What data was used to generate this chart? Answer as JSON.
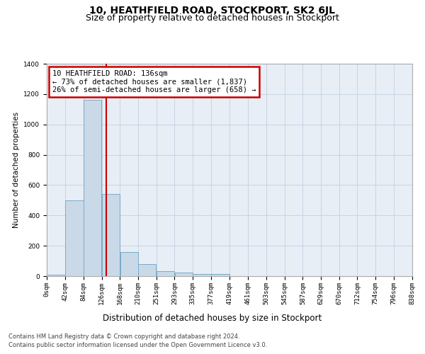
{
  "title": "10, HEATHFIELD ROAD, STOCKPORT, SK2 6JL",
  "subtitle": "Size of property relative to detached houses in Stockport",
  "xlabel": "Distribution of detached houses by size in Stockport",
  "ylabel": "Number of detached properties",
  "footnote1": "Contains HM Land Registry data © Crown copyright and database right 2024.",
  "footnote2": "Contains public sector information licensed under the Open Government Licence v3.0.",
  "annotation_line1": "10 HEATHFIELD ROAD: 136sqm",
  "annotation_line2": "← 73% of detached houses are smaller (1,837)",
  "annotation_line3": "26% of semi-detached houses are larger (658) →",
  "bin_edges": [
    0,
    42,
    84,
    126,
    168,
    210,
    251,
    293,
    335,
    377,
    419,
    461,
    503,
    545,
    587,
    629,
    670,
    712,
    754,
    796,
    838
  ],
  "bar_heights": [
    10,
    500,
    1160,
    540,
    160,
    80,
    35,
    25,
    15,
    15,
    0,
    0,
    0,
    0,
    0,
    0,
    0,
    0,
    0,
    0
  ],
  "bar_color": "#c9d9e8",
  "bar_edge_color": "#7aaac8",
  "vline_x": 136,
  "vline_color": "#cc0000",
  "xlim": [
    0,
    838
  ],
  "ylim": [
    0,
    1400
  ],
  "yticks": [
    0,
    200,
    400,
    600,
    800,
    1000,
    1200,
    1400
  ],
  "xtick_labels": [
    "0sqm",
    "42sqm",
    "84sqm",
    "126sqm",
    "168sqm",
    "210sqm",
    "251sqm",
    "293sqm",
    "335sqm",
    "377sqm",
    "419sqm",
    "461sqm",
    "503sqm",
    "545sqm",
    "587sqm",
    "629sqm",
    "670sqm",
    "712sqm",
    "754sqm",
    "796sqm",
    "838sqm"
  ],
  "xtick_positions": [
    0,
    42,
    84,
    126,
    168,
    210,
    251,
    293,
    335,
    377,
    419,
    461,
    503,
    545,
    587,
    629,
    670,
    712,
    754,
    796,
    838
  ],
  "grid_color": "#c8d4e4",
  "bg_color": "#e8eef5",
  "annotation_box_facecolor": "#ffffff",
  "annotation_box_edgecolor": "#cc0000",
  "title_fontsize": 10,
  "subtitle_fontsize": 9,
  "xlabel_fontsize": 8.5,
  "ylabel_fontsize": 7.5,
  "tick_fontsize": 6.5,
  "annotation_fontsize": 7.5,
  "footnote_fontsize": 6
}
